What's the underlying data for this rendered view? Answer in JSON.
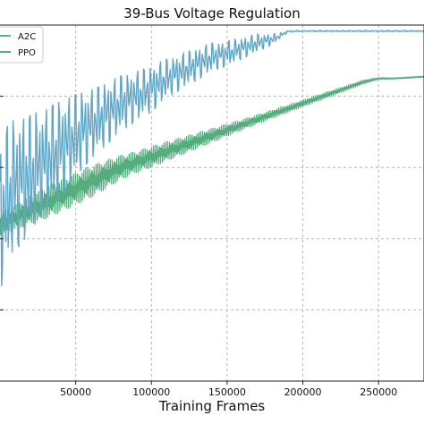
{
  "chart_data": {
    "type": "line",
    "title": "39-Bus Voltage Regulation",
    "xlabel": "Training Frames",
    "ylabel": "",
    "xlim": [
      0,
      280000
    ],
    "ylim": [
      0,
      1
    ],
    "x_ticks": [
      50000,
      100000,
      150000,
      200000,
      250000
    ],
    "x_tick_labels": [
      "50000",
      "100000",
      "150000",
      "200000",
      "250000"
    ],
    "grid": true,
    "legend_position": "top-left",
    "series": [
      {
        "name": "A2C",
        "color": "#5fa6c7",
        "x": [
          0,
          5000,
          10000,
          15000,
          20000,
          25000,
          30000,
          40000,
          50000,
          60000,
          70000,
          80000,
          90000,
          100000,
          110000,
          120000,
          130000,
          140000,
          150000,
          160000,
          170000,
          180000,
          185000,
          190000,
          200000,
          220000,
          240000,
          260000,
          280000
        ],
        "y": [
          0.45,
          0.52,
          0.55,
          0.57,
          0.58,
          0.6,
          0.62,
          0.65,
          0.69,
          0.72,
          0.75,
          0.78,
          0.8,
          0.82,
          0.85,
          0.87,
          0.89,
          0.91,
          0.92,
          0.935,
          0.95,
          0.96,
          0.97,
          0.982,
          0.983,
          0.983,
          0.983,
          0.983,
          0.983
        ],
        "amplitude": [
          0.2,
          0.2,
          0.19,
          0.18,
          0.17,
          0.16,
          0.15,
          0.14,
          0.12,
          0.1,
          0.09,
          0.08,
          0.07,
          0.065,
          0.055,
          0.05,
          0.045,
          0.04,
          0.035,
          0.03,
          0.025,
          0.015,
          0.008,
          0.003,
          0.002,
          0.002,
          0.002,
          0.002,
          0.002
        ]
      },
      {
        "name": "PPO",
        "color": "#55ad7e",
        "x": [
          0,
          10000,
          20000,
          30000,
          40000,
          50000,
          60000,
          70000,
          80000,
          90000,
          100000,
          120000,
          140000,
          160000,
          180000,
          200000,
          220000,
          240000,
          250000,
          260000,
          280000
        ],
        "y": [
          0.44,
          0.46,
          0.48,
          0.5,
          0.52,
          0.54,
          0.56,
          0.58,
          0.6,
          0.615,
          0.63,
          0.66,
          0.69,
          0.72,
          0.75,
          0.78,
          0.81,
          0.84,
          0.85,
          0.85,
          0.855
        ],
        "amplitude": [
          0.03,
          0.035,
          0.04,
          0.045,
          0.045,
          0.045,
          0.045,
          0.04,
          0.035,
          0.03,
          0.03,
          0.025,
          0.02,
          0.015,
          0.012,
          0.01,
          0.008,
          0.006,
          0.003,
          0.002,
          0.002
        ]
      }
    ]
  }
}
